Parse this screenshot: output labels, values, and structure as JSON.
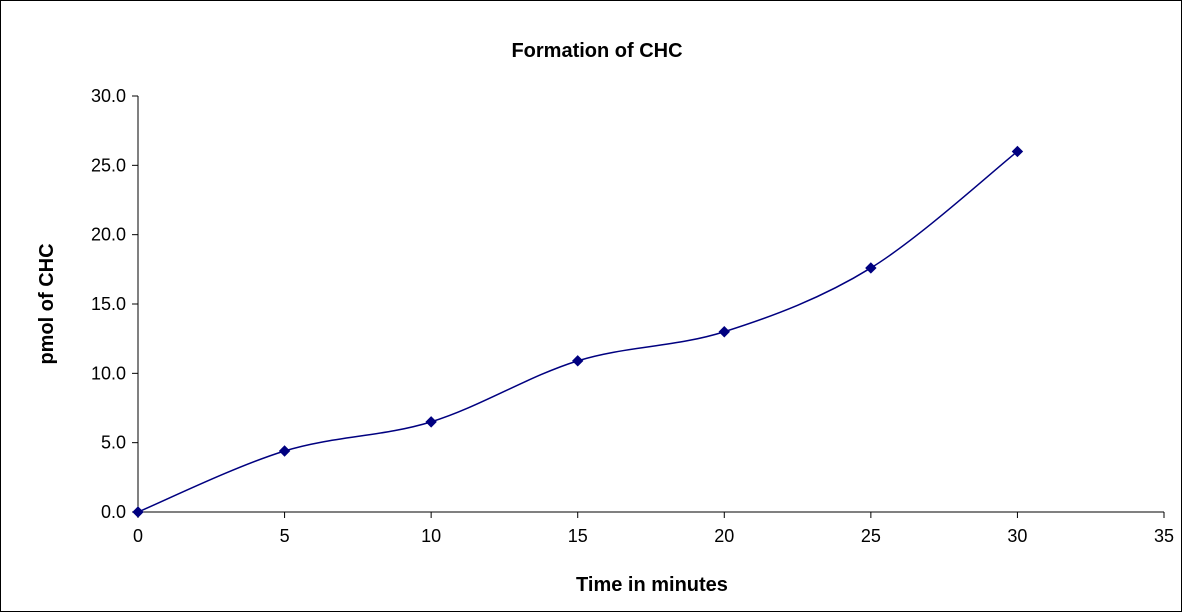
{
  "chart_data": {
    "type": "line",
    "title": "Formation of CHC",
    "xlabel": "Time in minutes",
    "ylabel": "pmol of CHC",
    "xlim": [
      0,
      35
    ],
    "ylim": [
      0,
      30
    ],
    "x_ticks": [
      "0",
      "5",
      "10",
      "15",
      "20",
      "25",
      "30",
      "35"
    ],
    "y_ticks": [
      "0.0",
      "5.0",
      "10.0",
      "15.0",
      "20.0",
      "25.0",
      "30.0"
    ],
    "grid": false,
    "legend": "none",
    "smoothed": true,
    "marker": "diamond",
    "series_color": "#000080",
    "series": [
      {
        "x": [
          0,
          5,
          10,
          15,
          20,
          25,
          30
        ],
        "values": [
          0.0,
          4.4,
          6.5,
          10.9,
          13.0,
          17.6,
          26.0
        ]
      }
    ]
  }
}
